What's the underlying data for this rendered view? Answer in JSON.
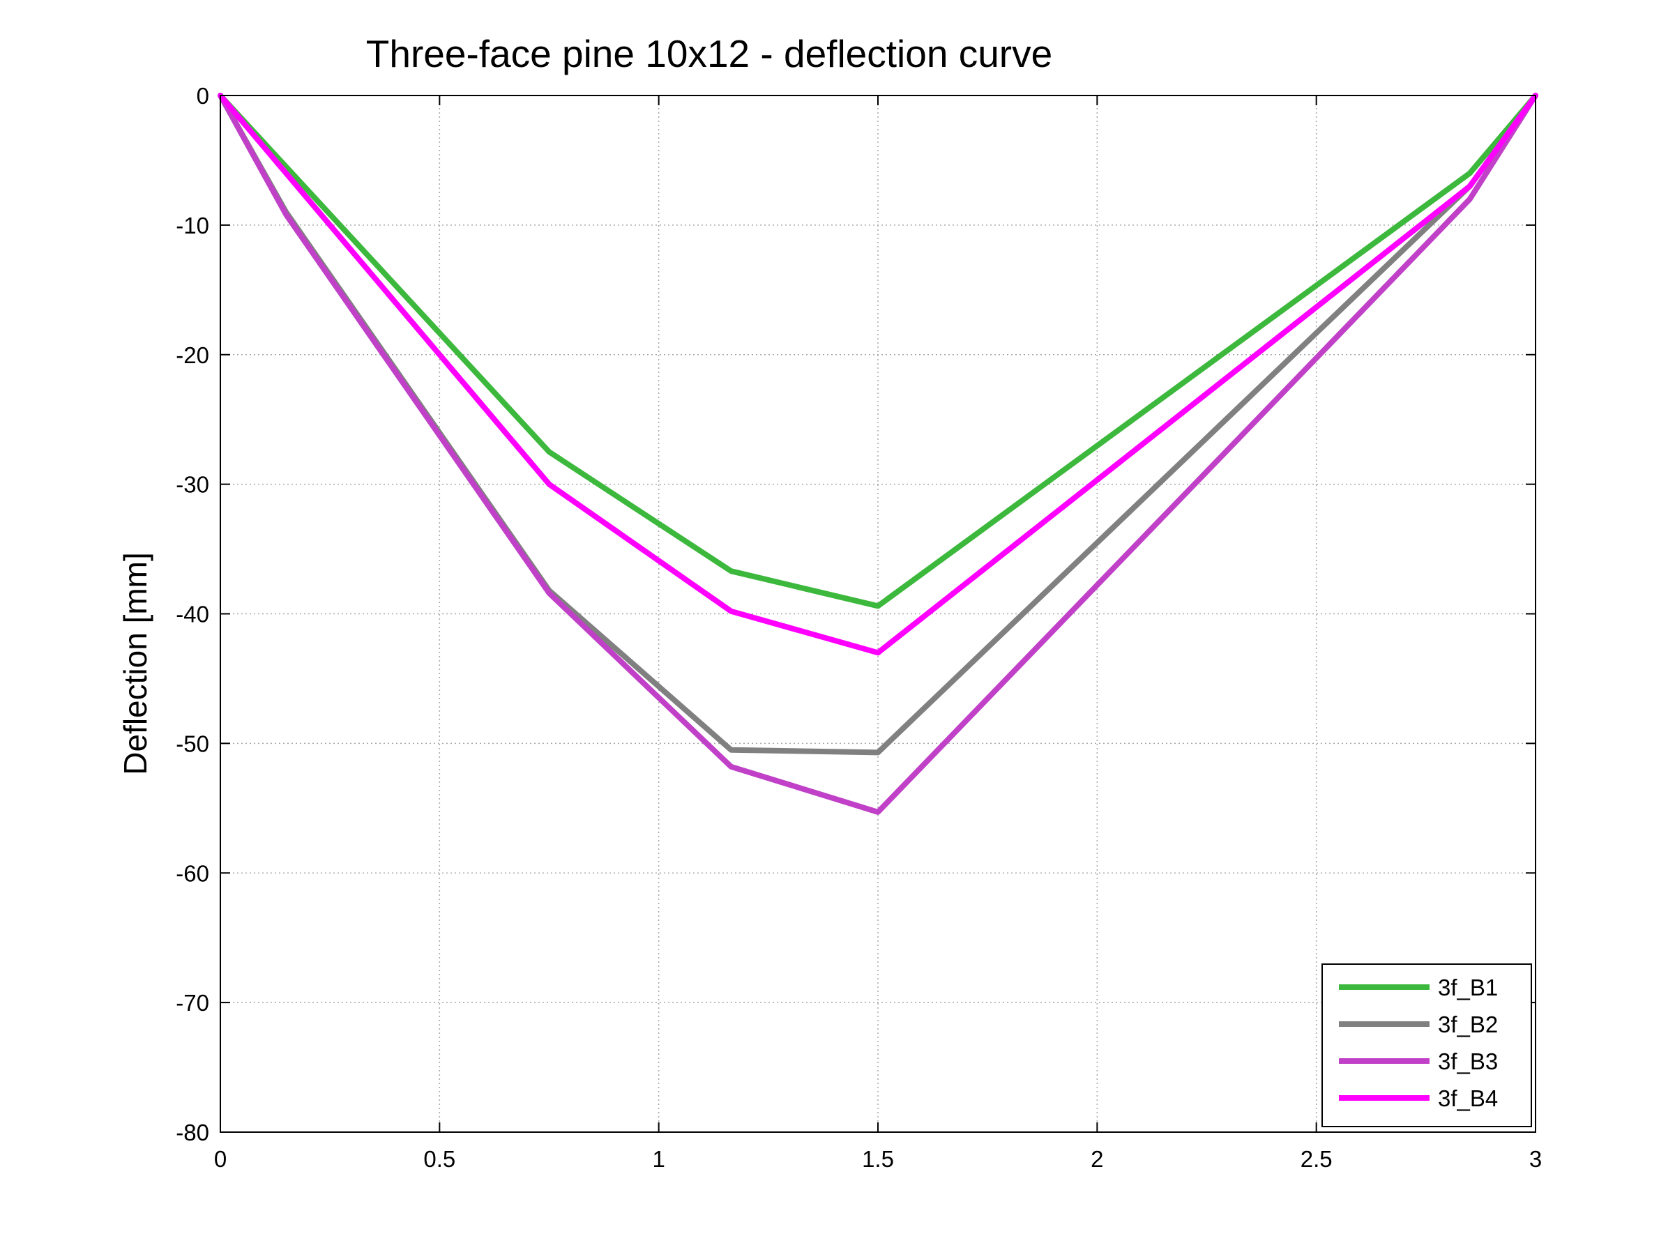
{
  "chart_data": {
    "type": "line",
    "title": "Three-face pine 10x12 - deflection curve",
    "xlabel": "",
    "ylabel": "Deflection [mm]",
    "xlim": [
      0,
      3
    ],
    "ylim": [
      -80,
      0
    ],
    "xticks": [
      "0",
      "0.5",
      "1",
      "1.5",
      "2",
      "2.5",
      "3"
    ],
    "yticks": [
      "0",
      "-10",
      "-20",
      "-30",
      "-40",
      "-50",
      "-60",
      "-70",
      "-80"
    ],
    "grid": true,
    "legend_position": "bottom-right",
    "series": [
      {
        "name": "3f_B1",
        "color": "#3cb83c",
        "x": [
          0,
          0.75,
          1.165,
          1.5,
          2.85,
          3
        ],
        "y": [
          0,
          -27.5,
          -36.7,
          -39.4,
          -6,
          0
        ]
      },
      {
        "name": "3f_B2",
        "color": "#808080",
        "x": [
          0,
          0.15,
          0.75,
          1.165,
          1.5,
          2.85,
          3
        ],
        "y": [
          0,
          -9,
          -38.2,
          -50.5,
          -50.7,
          -7,
          0
        ]
      },
      {
        "name": "3f_B3",
        "color": "#c040c8",
        "x": [
          0,
          0.15,
          0.75,
          1.165,
          1.5,
          2.85,
          3
        ],
        "y": [
          0,
          -9.2,
          -38.4,
          -51.8,
          -55.3,
          -8,
          0
        ]
      },
      {
        "name": "3f_B4",
        "color": "#ff00ff",
        "x": [
          0,
          0.75,
          1.165,
          1.5,
          2.85,
          3
        ],
        "y": [
          0,
          -30,
          -39.8,
          -43,
          -7,
          0
        ]
      }
    ]
  }
}
